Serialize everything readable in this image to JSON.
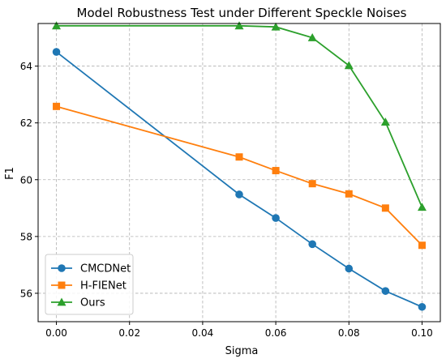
{
  "chart_data": {
    "type": "line",
    "title": "Model Robustness Test under Different Speckle Noises",
    "xlabel": "Sigma",
    "ylabel": "F1",
    "x": [
      0.0,
      0.05,
      0.06,
      0.07,
      0.08,
      0.09,
      0.1
    ],
    "xlim": [
      -0.005,
      0.105
    ],
    "ylim": [
      55.0,
      65.5
    ],
    "xticks": [
      0.0,
      0.02,
      0.04,
      0.06,
      0.08,
      0.1
    ],
    "xtick_labels": [
      "0.00",
      "0.02",
      "0.04",
      "0.06",
      "0.08",
      "0.10"
    ],
    "yticks": [
      56,
      58,
      60,
      62,
      64
    ],
    "ytick_labels": [
      "56",
      "58",
      "60",
      "62",
      "64"
    ],
    "grid": true,
    "legend_position": "lower-left",
    "series": [
      {
        "name": "CMCDNet",
        "color": "#1f77b4",
        "marker": "circle",
        "values": [
          64.5,
          59.48,
          58.65,
          57.73,
          56.87,
          56.08,
          55.52
        ]
      },
      {
        "name": "H-FIENet",
        "color": "#ff7f0e",
        "marker": "square",
        "values": [
          62.58,
          60.8,
          60.32,
          59.86,
          59.5,
          59.0,
          57.69
        ]
      },
      {
        "name": "Ours",
        "color": "#2ca02c",
        "marker": "triangle",
        "values": [
          65.42,
          65.42,
          65.38,
          65.0,
          64.02,
          62.03,
          59.03
        ]
      }
    ]
  }
}
